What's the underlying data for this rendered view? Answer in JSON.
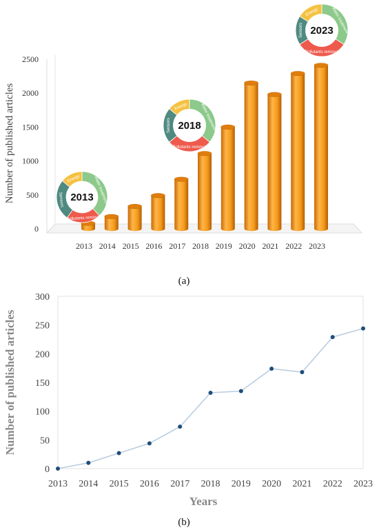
{
  "chart_data": [
    {
      "type": "bar",
      "style": "3d-cylinder",
      "color": "#f49b1b",
      "categories": [
        "2013",
        "2014",
        "2015",
        "2016",
        "2017",
        "2018",
        "2019",
        "2020",
        "2021",
        "2022",
        "2023"
      ],
      "values": [
        80,
        180,
        330,
        490,
        730,
        1110,
        1500,
        2150,
        1980,
        2290,
        2410
      ],
      "ylabel": "Number of published articles",
      "xlabel": "",
      "ylim": [
        0,
        2500
      ],
      "yticks": [
        "0",
        "500",
        "1000",
        "1500",
        "2000",
        "2500"
      ],
      "grid": false,
      "caption": "(a)",
      "insets": [
        {
          "year": "2013",
          "segments": [
            {
              "label": "Water treatment",
              "share": 0.38,
              "color": "#8cc98a"
            },
            {
              "label": "Pollutants removal",
              "share": 0.22,
              "color": "#ee5a4c"
            },
            {
              "label": "Sensors",
              "share": 0.26,
              "color": "#4f8a80"
            },
            {
              "label": "Energy",
              "share": 0.14,
              "color": "#f5c142"
            }
          ]
        },
        {
          "year": "2018",
          "segments": [
            {
              "label": "Water treatment",
              "share": 0.36,
              "color": "#8cc98a"
            },
            {
              "label": "Pollutants removal",
              "share": 0.28,
              "color": "#ee5a4c"
            },
            {
              "label": "Sensors",
              "share": 0.22,
              "color": "#4f8a80"
            },
            {
              "label": "Energy",
              "share": 0.14,
              "color": "#f5c142"
            }
          ]
        },
        {
          "year": "2023",
          "segments": [
            {
              "label": "Water treatment",
              "share": 0.34,
              "color": "#8cc98a"
            },
            {
              "label": "Pollutants removal",
              "share": 0.32,
              "color": "#ee5a4c"
            },
            {
              "label": "Sensors",
              "share": 0.18,
              "color": "#4f8a80"
            },
            {
              "label": "Energy",
              "share": 0.16,
              "color": "#f5c142"
            }
          ]
        }
      ]
    },
    {
      "type": "line",
      "color": "#b9cde0",
      "marker_color": "#1f4e79",
      "x": [
        "2013",
        "2014",
        "2015",
        "2016",
        "2017",
        "2018",
        "2019",
        "2020",
        "2021",
        "2022",
        "2023"
      ],
      "values": [
        0,
        10,
        27,
        44,
        73,
        132,
        135,
        174,
        168,
        229,
        244
      ],
      "ylabel": "Number of published articles",
      "xlabel": "Years",
      "ylim": [
        0,
        300
      ],
      "yticks": [
        "0",
        "50",
        "100",
        "150",
        "200",
        "250",
        "300"
      ],
      "grid": false,
      "caption": "(b)"
    }
  ]
}
